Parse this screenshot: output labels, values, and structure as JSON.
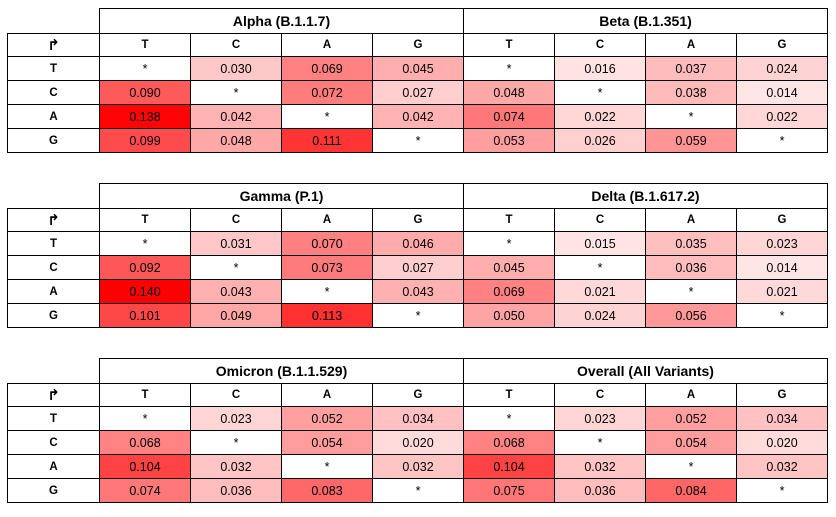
{
  "row_header_symbol": "↱",
  "bases": [
    "T",
    "C",
    "A",
    "G"
  ],
  "color_scale": {
    "low": "#ffffff",
    "high": "#ff0000",
    "max_value": 0.14
  },
  "chart_data": [
    {
      "type": "heatmap",
      "title": "Alpha (B.1.1.7)",
      "rows": [
        "T",
        "C",
        "A",
        "G"
      ],
      "columns": [
        "T",
        "C",
        "A",
        "G"
      ],
      "values": [
        [
          null,
          0.03,
          0.069,
          0.045
        ],
        [
          0.09,
          null,
          0.072,
          0.027
        ],
        [
          0.138,
          0.042,
          null,
          0.042
        ],
        [
          0.099,
          0.048,
          0.111,
          null
        ]
      ],
      "labels": [
        [
          "*",
          "0.030",
          "0.069",
          "0.045"
        ],
        [
          "0.090",
          "*",
          "0.072",
          "0.027"
        ],
        [
          "0.138",
          "0.042",
          "*",
          "0.042"
        ],
        [
          "0.099",
          "0.048",
          "0.111",
          "*"
        ]
      ]
    },
    {
      "type": "heatmap",
      "title": "Beta (B.1.351)",
      "rows": [
        "T",
        "C",
        "A",
        "G"
      ],
      "columns": [
        "T",
        "C",
        "A",
        "G"
      ],
      "values": [
        [
          null,
          0.016,
          0.037,
          0.024
        ],
        [
          0.048,
          null,
          0.038,
          0.014
        ],
        [
          0.074,
          0.022,
          null,
          0.022
        ],
        [
          0.053,
          0.026,
          0.059,
          null
        ]
      ],
      "labels": [
        [
          "*",
          "0.016",
          "0.037",
          "0.024"
        ],
        [
          "0.048",
          "*",
          "0.038",
          "0.014"
        ],
        [
          "0.074",
          "0.022",
          "*",
          "0.022"
        ],
        [
          "0.053",
          "0.026",
          "0.059",
          "*"
        ]
      ]
    },
    {
      "type": "heatmap",
      "title": "Gamma (P.1)",
      "rows": [
        "T",
        "C",
        "A",
        "G"
      ],
      "columns": [
        "T",
        "C",
        "A",
        "G"
      ],
      "values": [
        [
          null,
          0.031,
          0.07,
          0.046
        ],
        [
          0.092,
          null,
          0.073,
          0.027
        ],
        [
          0.14,
          0.043,
          null,
          0.043
        ],
        [
          0.101,
          0.049,
          0.113,
          null
        ]
      ],
      "labels": [
        [
          "*",
          "0.031",
          "0.070",
          "0.046"
        ],
        [
          "0.092",
          "*",
          "0.073",
          "0.027"
        ],
        [
          "0.140",
          "0.043",
          "*",
          "0.043"
        ],
        [
          "0.101",
          "0.049",
          "0.113",
          "*"
        ]
      ]
    },
    {
      "type": "heatmap",
      "title": "Delta (B.1.617.2)",
      "rows": [
        "T",
        "C",
        "A",
        "G"
      ],
      "columns": [
        "T",
        "C",
        "A",
        "G"
      ],
      "values": [
        [
          null,
          0.015,
          0.035,
          0.023
        ],
        [
          0.045,
          null,
          0.036,
          0.014
        ],
        [
          0.069,
          0.021,
          null,
          0.021
        ],
        [
          0.05,
          0.024,
          0.056,
          null
        ]
      ],
      "labels": [
        [
          "*",
          "0.015",
          "0.035",
          "0.023"
        ],
        [
          "0.045",
          "*",
          "0.036",
          "0.014"
        ],
        [
          "0.069",
          "0.021",
          "*",
          "0.021"
        ],
        [
          "0.050",
          "0.024",
          "0.056",
          "*"
        ]
      ]
    },
    {
      "type": "heatmap",
      "title": "Omicron (B.1.1.529)",
      "rows": [
        "T",
        "C",
        "A",
        "G"
      ],
      "columns": [
        "T",
        "C",
        "A",
        "G"
      ],
      "values": [
        [
          null,
          0.023,
          0.052,
          0.034
        ],
        [
          0.068,
          null,
          0.054,
          0.02
        ],
        [
          0.104,
          0.032,
          null,
          0.032
        ],
        [
          0.074,
          0.036,
          0.083,
          null
        ]
      ],
      "labels": [
        [
          "*",
          "0.023",
          "0.052",
          "0.034"
        ],
        [
          "0.068",
          "*",
          "0.054",
          "0.020"
        ],
        [
          "0.104",
          "0.032",
          "*",
          "0.032"
        ],
        [
          "0.074",
          "0.036",
          "0.083",
          "*"
        ]
      ]
    },
    {
      "type": "heatmap",
      "title": "Overall (All Variants)",
      "rows": [
        "T",
        "C",
        "A",
        "G"
      ],
      "columns": [
        "T",
        "C",
        "A",
        "G"
      ],
      "values": [
        [
          null,
          0.023,
          0.052,
          0.034
        ],
        [
          0.068,
          null,
          0.054,
          0.02
        ],
        [
          0.104,
          0.032,
          null,
          0.032
        ],
        [
          0.075,
          0.036,
          0.084,
          null
        ]
      ],
      "labels": [
        [
          "*",
          "0.023",
          "0.052",
          "0.034"
        ],
        [
          "0.068",
          "*",
          "0.054",
          "0.020"
        ],
        [
          "0.104",
          "0.032",
          "*",
          "0.032"
        ],
        [
          "0.075",
          "0.036",
          "0.084",
          "*"
        ]
      ]
    }
  ]
}
